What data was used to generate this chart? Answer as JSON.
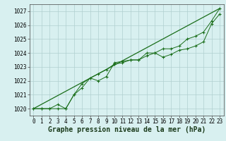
{
  "x": [
    0,
    1,
    2,
    3,
    4,
    5,
    6,
    7,
    8,
    9,
    10,
    11,
    12,
    13,
    14,
    15,
    16,
    17,
    18,
    19,
    20,
    21,
    22,
    23
  ],
  "line1": [
    1020.0,
    1020.0,
    1020.0,
    1020.3,
    1020.0,
    1021.0,
    1021.5,
    1022.2,
    1022.0,
    1022.3,
    1023.3,
    1023.4,
    1023.5,
    1023.5,
    1024.0,
    1024.0,
    1023.7,
    1023.9,
    1024.2,
    1024.3,
    1024.5,
    1024.8,
    1026.1,
    1026.8
  ],
  "line2": [
    1020.0,
    1020.0,
    1020.0,
    1020.0,
    1020.0,
    1021.0,
    1021.8,
    1022.2,
    1022.5,
    1022.8,
    1023.2,
    1023.3,
    1023.5,
    1023.5,
    1023.8,
    1024.0,
    1024.3,
    1024.3,
    1024.5,
    1025.0,
    1025.2,
    1025.5,
    1026.3,
    1027.2
  ],
  "line3_x": [
    0,
    23
  ],
  "line3_y": [
    1020.0,
    1027.2
  ],
  "line_color": "#1a6e1a",
  "bg_color": "#d8f0f0",
  "grid_color": "#b0d0d0",
  "xlabel": "Graphe pression niveau de la mer (hPa)",
  "ylim": [
    1019.5,
    1027.5
  ],
  "yticks": [
    1020,
    1021,
    1022,
    1023,
    1024,
    1025,
    1026,
    1027
  ],
  "xticks": [
    0,
    1,
    2,
    3,
    4,
    5,
    6,
    7,
    8,
    9,
    10,
    11,
    12,
    13,
    14,
    15,
    16,
    17,
    18,
    19,
    20,
    21,
    22,
    23
  ],
  "xlabel_fontsize": 7,
  "tick_fontsize": 5.5
}
